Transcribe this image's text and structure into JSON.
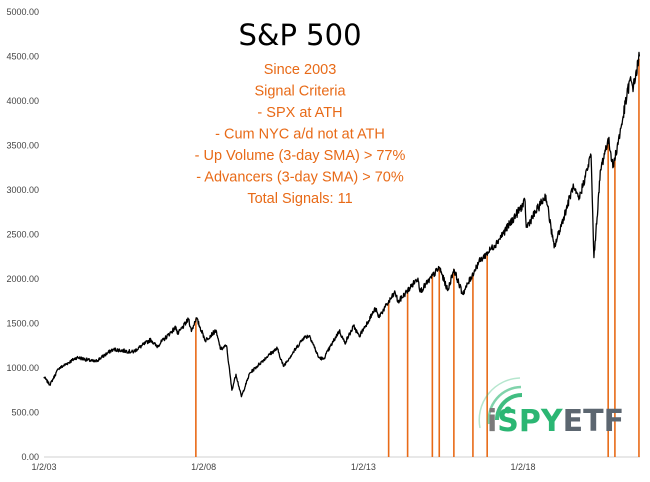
{
  "chart_data": {
    "type": "line",
    "title": "S&P 500",
    "annotations": [
      "Since 2003",
      "Signal Criteria",
      "- SPX at ATH",
      "- Cum NYC a/d not at ATH",
      "- Up Volume (3-day SMA) > 77%",
      "- Advancers (3-day SMA) > 70%",
      "Total Signals: 11"
    ],
    "xlabel": "",
    "ylabel": "",
    "ylim": [
      0,
      5000
    ],
    "xlim": [
      "2003-01-02",
      "2021-09-01"
    ],
    "y_ticks": [
      "0.00",
      "500.00",
      "1000.00",
      "1500.00",
      "2000.00",
      "2500.00",
      "3000.00",
      "3500.00",
      "4000.00",
      "4500.00",
      "5000.00"
    ],
    "x_ticks": [
      {
        "label": "1/2/03",
        "date": "2003-01-02"
      },
      {
        "label": "1/2/08",
        "date": "2008-01-02"
      },
      {
        "label": "1/2/13",
        "date": "2013-01-02"
      },
      {
        "label": "1/2/18",
        "date": "2018-01-02"
      }
    ],
    "series": [
      {
        "color": "#000000",
        "points": [
          [
            "2003-01-02",
            900
          ],
          [
            "2003-03-10",
            810
          ],
          [
            "2003-06-15",
            990
          ],
          [
            "2004-01-15",
            1120
          ],
          [
            "2004-08-10",
            1070
          ],
          [
            "2005-03-01",
            1210
          ],
          [
            "2005-10-15",
            1180
          ],
          [
            "2006-05-08",
            1320
          ],
          [
            "2006-07-15",
            1240
          ],
          [
            "2007-02-20",
            1460
          ],
          [
            "2007-03-10",
            1380
          ],
          [
            "2007-07-15",
            1550
          ],
          [
            "2007-08-15",
            1410
          ],
          [
            "2007-10-09",
            1565
          ],
          [
            "2008-01-22",
            1310
          ],
          [
            "2008-05-19",
            1420
          ],
          [
            "2008-07-15",
            1210
          ],
          [
            "2008-09-20",
            1250
          ],
          [
            "2008-11-20",
            750
          ],
          [
            "2009-01-06",
            930
          ],
          [
            "2009-03-09",
            677
          ],
          [
            "2009-06-12",
            940
          ],
          [
            "2010-01-19",
            1150
          ],
          [
            "2010-04-23",
            1220
          ],
          [
            "2010-07-02",
            1020
          ],
          [
            "2011-02-18",
            1340
          ],
          [
            "2011-04-29",
            1365
          ],
          [
            "2011-08-08",
            1120
          ],
          [
            "2011-10-03",
            1100
          ],
          [
            "2012-04-02",
            1420
          ],
          [
            "2012-06-04",
            1280
          ],
          [
            "2012-09-14",
            1470
          ],
          [
            "2012-11-15",
            1355
          ],
          [
            "2013-05-21",
            1670
          ],
          [
            "2013-06-24",
            1570
          ],
          [
            "2013-12-31",
            1850
          ],
          [
            "2014-02-03",
            1740
          ],
          [
            "2014-09-18",
            2010
          ],
          [
            "2014-10-15",
            1860
          ],
          [
            "2015-05-21",
            2130
          ],
          [
            "2015-08-25",
            1870
          ],
          [
            "2015-11-03",
            2110
          ],
          [
            "2016-02-11",
            1830
          ],
          [
            "2016-08-15",
            2190
          ],
          [
            "2017-03-01",
            2400
          ],
          [
            "2018-01-26",
            2870
          ],
          [
            "2018-02-08",
            2580
          ],
          [
            "2018-09-20",
            2940
          ],
          [
            "2018-12-24",
            2350
          ],
          [
            "2019-07-26",
            3025
          ],
          [
            "2019-10-03",
            2890
          ],
          [
            "2020-02-19",
            3390
          ],
          [
            "2020-03-23",
            2240
          ],
          [
            "2020-06-08",
            3230
          ],
          [
            "2020-09-02",
            3580
          ],
          [
            "2020-10-30",
            3270
          ],
          [
            "2021-01-29",
            3710
          ],
          [
            "2021-05-07",
            4230
          ],
          [
            "2021-06-18",
            4160
          ],
          [
            "2021-08-25",
            4500
          ]
        ]
      },
      {
        "color": "#e86a17",
        "signal_dates": [
          "2007-10-05",
          "2013-10-18",
          "2014-05-23",
          "2015-03-02",
          "2015-05-20",
          "2015-11-03",
          "2016-06-08",
          "2016-11-18",
          "2020-09-02",
          "2020-11-18",
          "2021-08-20"
        ]
      }
    ]
  },
  "logo": {
    "name": "iSPYETF",
    "letters": [
      "i",
      "SPY",
      "ETF"
    ],
    "colors": {
      "i": "#7a7a7a",
      "spy": "#2bb673",
      "etf": "#5c6670"
    }
  },
  "colors": {
    "price_line": "#000000",
    "signal_line": "#e86a17",
    "annotation_text": "#e86a17",
    "title_text": "#000000",
    "axis": "#d0d0d0"
  }
}
